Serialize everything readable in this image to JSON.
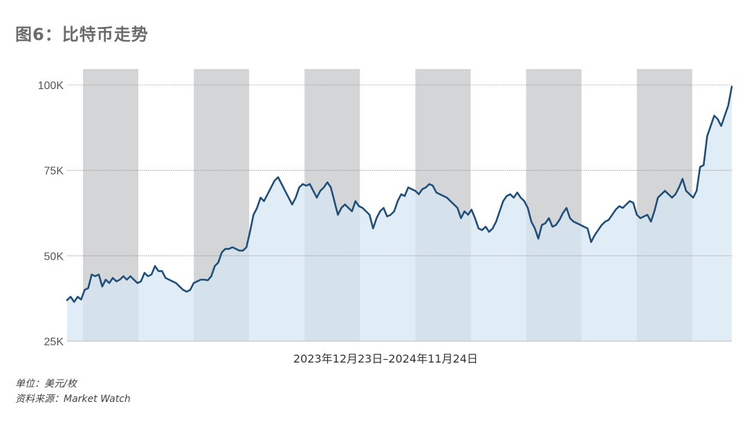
{
  "chart_data": {
    "type": "area",
    "title": "图6：比特币走势",
    "xlabel": "2023年12月23日–2024年11月24日",
    "ylabel": "",
    "ylim": [
      25000,
      100000
    ],
    "yticks": [
      25000,
      50000,
      75000,
      100000
    ],
    "ytick_labels": [
      "25K",
      "50K",
      "75K",
      "100K"
    ],
    "grid": true,
    "shaded_bands": 6,
    "line_color": "#1f4e79",
    "fill_color": "#d6e6f3",
    "band_color": "#d3d5d6",
    "series": [
      {
        "values": [
          37000,
          38000,
          36500,
          38000,
          37200,
          40000,
          40500,
          44500,
          44000,
          44500,
          41000,
          43000,
          42000,
          43500,
          42500,
          43000,
          44000,
          43000,
          44000,
          43000,
          42000,
          42500,
          45000,
          44000,
          44500,
          47000,
          45500,
          45500,
          43500,
          43000,
          42500,
          42000,
          41000,
          40000,
          39500,
          40000,
          42000,
          42500,
          43000,
          43000,
          42800,
          44000,
          47000,
          48000,
          51000,
          52000,
          52000,
          52500,
          52000,
          51500,
          51500,
          52500,
          57000,
          62000,
          64000,
          67000,
          66000,
          68000,
          70000,
          72000,
          73000,
          71000,
          69000,
          67000,
          65000,
          67000,
          70000,
          71000,
          70500,
          71000,
          69000,
          67000,
          69000,
          70000,
          71500,
          70000,
          66000,
          62000,
          64000,
          65000,
          64000,
          63000,
          66000,
          64500,
          64000,
          63000,
          62000,
          58000,
          61000,
          63000,
          64000,
          61500,
          62000,
          63000,
          66000,
          68000,
          67500,
          70000,
          69500,
          69000,
          68000,
          69500,
          70000,
          71000,
          70500,
          68500,
          68000,
          67500,
          67000,
          66000,
          65000,
          64000,
          61000,
          63000,
          62000,
          63500,
          61000,
          58000,
          57500,
          58500,
          57000,
          58000,
          60000,
          63000,
          66000,
          67500,
          68000,
          67000,
          68500,
          67000,
          66000,
          64000,
          60000,
          58000,
          55000,
          59000,
          59500,
          61000,
          58500,
          59000,
          60500,
          62500,
          64000,
          61000,
          60000,
          59500,
          59000,
          58500,
          58000,
          54000,
          56000,
          57500,
          59000,
          60000,
          60500,
          62000,
          63500,
          64500,
          64000,
          65000,
          66000,
          65500,
          62000,
          61000,
          61500,
          62000,
          60000,
          63000,
          67000,
          68000,
          69000,
          68000,
          67000,
          68000,
          70000,
          72500,
          69000,
          68000,
          67000,
          69000,
          76000,
          76500,
          85000,
          88000,
          91000,
          90000,
          88000,
          91000,
          94000,
          99500
        ]
      }
    ]
  },
  "footer": {
    "unit_note": "单位：美元/枚",
    "source_note": "资料来源：Market Watch"
  }
}
